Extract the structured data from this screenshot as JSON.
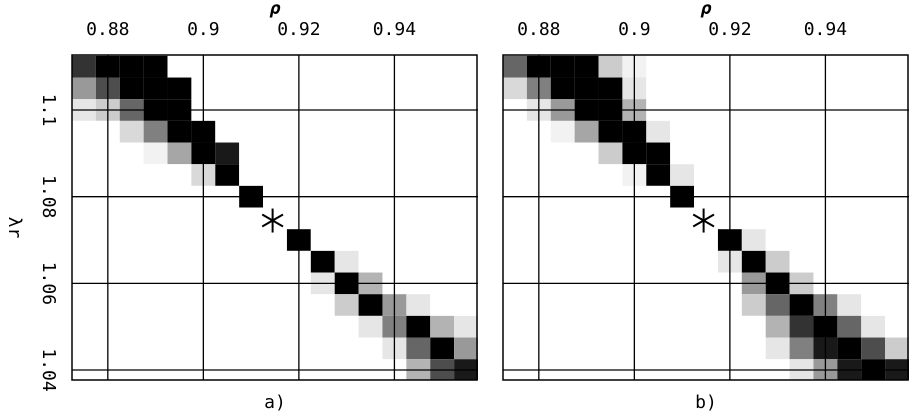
{
  "chart_data": [
    {
      "type": "heatmap",
      "panel_label": "a)",
      "xlabel": "ρ",
      "ylabel": "λr",
      "xlim": [
        0.8725,
        0.9575
      ],
      "ylim": [
        1.0377,
        1.1127
      ],
      "xticks": [
        0.88,
        0.9,
        0.92,
        0.94
      ],
      "yticks": [
        1.04,
        1.06,
        1.08,
        1.1
      ],
      "show_ytick_labels": true,
      "star": [
        0.9145,
        1.0745
      ],
      "x": [
        0.875,
        0.88,
        0.885,
        0.89,
        0.895,
        0.9,
        0.905,
        0.91,
        0.915,
        0.92,
        0.925,
        0.93,
        0.935,
        0.94,
        0.945,
        0.95,
        0.955
      ],
      "y": [
        1.11,
        1.105,
        1.1,
        1.095,
        1.09,
        1.085,
        1.08,
        1.075,
        1.07,
        1.065,
        1.06,
        1.055,
        1.05,
        1.045,
        1.04
      ],
      "z": [
        [
          0.8,
          1,
          1,
          1,
          0,
          0,
          0,
          0,
          0,
          0,
          0,
          0,
          0,
          0,
          0,
          0,
          0
        ],
        [
          0.4,
          0.7,
          1,
          1,
          1,
          0,
          0,
          0,
          0,
          0,
          0,
          0,
          0,
          0,
          0,
          0,
          0
        ],
        [
          0.1,
          0.2,
          0.6,
          1,
          1,
          0,
          0,
          0,
          0,
          0,
          0,
          0,
          0,
          0,
          0,
          0,
          0
        ],
        [
          0,
          0,
          0.15,
          0.5,
          1,
          1,
          0,
          0,
          0,
          0,
          0,
          0,
          0,
          0,
          0,
          0,
          0
        ],
        [
          0,
          0,
          0,
          0.05,
          0.35,
          1,
          0.9,
          0,
          0,
          0,
          0,
          0,
          0,
          0,
          0,
          0,
          0
        ],
        [
          0,
          0,
          0,
          0,
          0,
          0.15,
          1,
          0,
          0,
          0,
          0,
          0,
          0,
          0,
          0,
          0,
          0
        ],
        [
          0,
          0,
          0,
          0,
          0,
          0,
          0,
          1,
          0,
          0,
          0,
          0,
          0,
          0,
          0,
          0,
          0
        ],
        [
          0,
          0,
          0,
          0,
          0,
          0,
          0,
          0,
          0,
          0,
          0,
          0,
          0,
          0,
          0,
          0,
          0
        ],
        [
          0,
          0,
          0,
          0,
          0,
          0,
          0,
          0,
          0,
          1,
          0,
          0,
          0,
          0,
          0,
          0,
          0
        ],
        [
          0,
          0,
          0,
          0,
          0,
          0,
          0,
          0,
          0,
          0,
          1,
          0.1,
          0,
          0,
          0,
          0,
          0
        ],
        [
          0,
          0,
          0,
          0,
          0,
          0,
          0,
          0,
          0,
          0,
          0.1,
          1,
          0.3,
          0,
          0,
          0,
          0
        ],
        [
          0,
          0,
          0,
          0,
          0,
          0,
          0,
          0,
          0,
          0,
          0,
          0.2,
          1,
          0.4,
          0.1,
          0,
          0
        ],
        [
          0,
          0,
          0,
          0,
          0,
          0,
          0,
          0,
          0,
          0,
          0,
          0,
          0.1,
          0.5,
          1,
          0.3,
          0.1
        ],
        [
          0,
          0,
          0,
          0,
          0,
          0,
          0,
          0,
          0,
          0,
          0,
          0,
          0,
          0.1,
          0.6,
          1,
          0.4
        ],
        [
          0,
          0,
          0,
          0,
          0,
          0,
          0,
          0,
          0,
          0,
          0,
          0,
          0,
          0,
          0.3,
          0.7,
          0.9
        ]
      ]
    },
    {
      "type": "heatmap",
      "panel_label": "b)",
      "xlabel": "ρ",
      "xlim": [
        0.8725,
        0.9575
      ],
      "ylim": [
        1.0377,
        1.1127
      ],
      "xticks": [
        0.88,
        0.9,
        0.92,
        0.94
      ],
      "yticks": [
        1.04,
        1.06,
        1.08,
        1.1
      ],
      "show_ytick_labels": false,
      "star": [
        0.9145,
        1.0745
      ],
      "x": [
        0.875,
        0.88,
        0.885,
        0.89,
        0.895,
        0.9,
        0.905,
        0.91,
        0.915,
        0.92,
        0.925,
        0.93,
        0.935,
        0.94,
        0.945,
        0.95,
        0.955
      ],
      "y": [
        1.11,
        1.105,
        1.1,
        1.095,
        1.09,
        1.085,
        1.08,
        1.075,
        1.07,
        1.065,
        1.06,
        1.055,
        1.05,
        1.045,
        1.04
      ],
      "z": [
        [
          0.6,
          1,
          1,
          1,
          0.2,
          0.05,
          0,
          0,
          0,
          0,
          0,
          0,
          0,
          0,
          0,
          0,
          0
        ],
        [
          0.15,
          0.5,
          1,
          1,
          1,
          0.1,
          0,
          0,
          0,
          0,
          0,
          0,
          0,
          0,
          0,
          0,
          0
        ],
        [
          0,
          0.1,
          0.4,
          1,
          1,
          0.3,
          0,
          0,
          0,
          0,
          0,
          0,
          0,
          0,
          0,
          0,
          0
        ],
        [
          0,
          0,
          0.05,
          0.35,
          1,
          1,
          0.1,
          0,
          0,
          0,
          0,
          0,
          0,
          0,
          0,
          0,
          0
        ],
        [
          0,
          0,
          0,
          0,
          0.2,
          1,
          1,
          0,
          0,
          0,
          0,
          0,
          0,
          0,
          0,
          0,
          0
        ],
        [
          0,
          0,
          0,
          0,
          0,
          0.05,
          1,
          0.1,
          0,
          0,
          0,
          0,
          0,
          0,
          0,
          0,
          0
        ],
        [
          0,
          0,
          0,
          0,
          0,
          0,
          0,
          1,
          0,
          0,
          0,
          0,
          0,
          0,
          0,
          0,
          0
        ],
        [
          0,
          0,
          0,
          0,
          0,
          0,
          0,
          0,
          0,
          0,
          0,
          0,
          0,
          0,
          0,
          0,
          0
        ],
        [
          0,
          0,
          0,
          0,
          0,
          0,
          0,
          0,
          0,
          1,
          0.1,
          0,
          0,
          0,
          0,
          0,
          0
        ],
        [
          0,
          0,
          0,
          0,
          0,
          0,
          0,
          0,
          0,
          0.1,
          1,
          0.2,
          0,
          0,
          0,
          0,
          0
        ],
        [
          0,
          0,
          0,
          0,
          0,
          0,
          0,
          0,
          0,
          0,
          0.4,
          1,
          0.2,
          0,
          0,
          0,
          0
        ],
        [
          0,
          0,
          0,
          0,
          0,
          0,
          0,
          0,
          0,
          0,
          0.2,
          0.6,
          1,
          0.5,
          0.1,
          0,
          0
        ],
        [
          0,
          0,
          0,
          0,
          0,
          0,
          0,
          0,
          0,
          0,
          0,
          0.3,
          0.8,
          1,
          0.6,
          0.1,
          0
        ],
        [
          0,
          0,
          0,
          0,
          0,
          0,
          0,
          0,
          0,
          0,
          0,
          0.1,
          0.5,
          0.9,
          1,
          0.7,
          0.2
        ],
        [
          0,
          0,
          0,
          0,
          0,
          0,
          0,
          0,
          0,
          0,
          0,
          0,
          0.1,
          0.4,
          0.9,
          1,
          0.9
        ]
      ]
    }
  ]
}
